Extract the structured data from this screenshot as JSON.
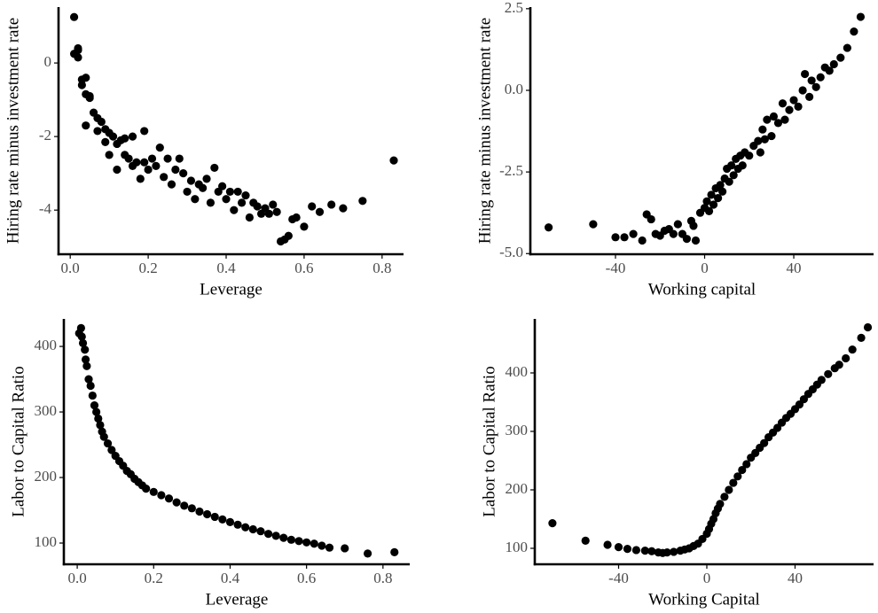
{
  "chart_data": [
    {
      "type": "scatter",
      "xlabel": "Leverage",
      "ylabel": "Hiring rate minus investment rate",
      "color": "#000000",
      "xlim": [
        -0.03,
        0.855
      ],
      "ylim": [
        -5.2,
        1.52
      ],
      "xticks": [
        {
          "value": 0,
          "label": "0.0"
        },
        0.2,
        0.4,
        0.6,
        0.8
      ],
      "yticks": [
        -4,
        -2,
        0
      ],
      "x": [
        0.01,
        0.01,
        0.02,
        0.02,
        0.02,
        0.03,
        0.03,
        0.04,
        0.04,
        0.05,
        0.05,
        0.04,
        0.06,
        0.07,
        0.08,
        0.07,
        0.09,
        0.09,
        0.1,
        0.1,
        0.11,
        0.12,
        0.12,
        0.13,
        0.14,
        0.14,
        0.15,
        0.16,
        0.16,
        0.17,
        0.18,
        0.19,
        0.19,
        0.2,
        0.21,
        0.22,
        0.23,
        0.24,
        0.25,
        0.26,
        0.27,
        0.28,
        0.29,
        0.3,
        0.31,
        0.32,
        0.33,
        0.34,
        0.35,
        0.36,
        0.37,
        0.38,
        0.39,
        0.4,
        0.41,
        0.42,
        0.43,
        0.44,
        0.45,
        0.46,
        0.47,
        0.48,
        0.49,
        0.5,
        0.51,
        0.52,
        0.53,
        0.54,
        0.55,
        0.56,
        0.57,
        0.58,
        0.6,
        0.62,
        0.64,
        0.67,
        0.7,
        0.75,
        0.83
      ],
      "values": [
        1.25,
        0.25,
        0.4,
        0.35,
        0.15,
        -0.45,
        -0.6,
        -0.4,
        -0.85,
        -0.95,
        -0.9,
        -1.7,
        -1.35,
        -1.5,
        -1.6,
        -1.85,
        -1.8,
        -2.15,
        -1.9,
        -2.5,
        -2.0,
        -2.2,
        -2.9,
        -2.1,
        -2.05,
        -2.5,
        -2.6,
        -2.0,
        -2.8,
        -2.7,
        -3.15,
        -2.7,
        -1.85,
        -2.9,
        -2.6,
        -2.8,
        -2.3,
        -3.1,
        -2.6,
        -3.3,
        -2.9,
        -2.6,
        -3.0,
        -3.5,
        -3.2,
        -3.7,
        -3.3,
        -3.4,
        -3.15,
        -3.8,
        -2.85,
        -3.5,
        -3.35,
        -3.7,
        -3.5,
        -4.0,
        -3.5,
        -3.8,
        -3.6,
        -4.2,
        -3.8,
        -3.9,
        -4.1,
        -3.95,
        -4.1,
        -3.85,
        -4.05,
        -4.85,
        -4.8,
        -4.7,
        -4.25,
        -4.2,
        -4.45,
        -3.9,
        -4.05,
        -3.85,
        -3.95,
        -3.75,
        -2.65
      ]
    },
    {
      "type": "scatter",
      "xlabel": "Working capital",
      "ylabel": "Hiring rate minus investment rate",
      "color": "#000000",
      "xlim": [
        -78.2,
        75.8
      ],
      "ylim": [
        -5.02,
        2.55
      ],
      "xticks": [
        -40,
        0,
        40
      ],
      "yticks": [
        {
          "value": -5,
          "label": "-5.0"
        },
        -2.5,
        {
          "value": 0,
          "label": "0.0"
        },
        2.5
      ],
      "x": [
        -70,
        -50,
        -40,
        -36,
        -32,
        -28,
        -26,
        -24,
        -22,
        -20,
        -18,
        -16,
        -14,
        -12,
        -10,
        -8,
        -6,
        -5,
        -4,
        -2,
        0,
        1,
        2,
        3,
        4,
        5,
        6,
        7,
        8,
        9,
        10,
        11,
        12,
        13,
        14,
        15,
        16,
        17,
        18,
        20,
        22,
        24,
        25,
        26,
        27,
        28,
        30,
        31,
        33,
        35,
        36,
        38,
        40,
        42,
        44,
        45,
        47,
        48,
        50,
        52,
        54,
        56,
        58,
        61,
        64,
        67,
        70
      ],
      "values": [
        -4.2,
        -4.1,
        -4.5,
        -4.5,
        -4.4,
        -4.6,
        -3.8,
        -3.95,
        -4.4,
        -4.45,
        -4.3,
        -4.25,
        -4.4,
        -4.1,
        -4.4,
        -4.55,
        -4.0,
        -4.15,
        -4.6,
        -3.75,
        -3.6,
        -3.4,
        -3.7,
        -3.2,
        -3.5,
        -3.0,
        -3.3,
        -2.9,
        -3.1,
        -2.7,
        -2.4,
        -2.8,
        -2.3,
        -2.6,
        -2.1,
        -2.4,
        -2.0,
        -2.3,
        -1.9,
        -2.0,
        -1.7,
        -1.55,
        -1.9,
        -1.2,
        -1.5,
        -0.9,
        -1.4,
        -0.8,
        -1.0,
        -0.4,
        -0.9,
        -0.6,
        -0.3,
        -0.5,
        0.0,
        0.5,
        -0.2,
        0.3,
        0.1,
        0.4,
        0.7,
        0.6,
        0.8,
        1.0,
        1.3,
        1.8,
        2.25
      ]
    },
    {
      "type": "scatter",
      "xlabel": "Leverage",
      "ylabel": "Labor to Capital Ratio",
      "color": "#000000",
      "xlim": [
        -0.035,
        0.87
      ],
      "ylim": [
        67.6,
        442
      ],
      "xticks": [
        {
          "value": 0,
          "label": "0.0"
        },
        0.2,
        0.4,
        0.6,
        0.8
      ],
      "yticks": [
        100,
        200,
        300,
        400
      ],
      "x": [
        0.005,
        0.01,
        0.012,
        0.015,
        0.02,
        0.022,
        0.025,
        0.03,
        0.035,
        0.04,
        0.045,
        0.05,
        0.055,
        0.06,
        0.065,
        0.07,
        0.08,
        0.09,
        0.1,
        0.11,
        0.12,
        0.13,
        0.14,
        0.15,
        0.16,
        0.17,
        0.18,
        0.2,
        0.22,
        0.24,
        0.26,
        0.28,
        0.3,
        0.32,
        0.34,
        0.36,
        0.38,
        0.4,
        0.42,
        0.44,
        0.46,
        0.48,
        0.5,
        0.52,
        0.54,
        0.56,
        0.58,
        0.6,
        0.62,
        0.64,
        0.66,
        0.7,
        0.76,
        0.83
      ],
      "values": [
        420,
        428,
        415,
        405,
        395,
        380,
        370,
        350,
        340,
        325,
        310,
        300,
        290,
        280,
        270,
        262,
        252,
        242,
        233,
        225,
        218,
        210,
        205,
        198,
        193,
        188,
        183,
        178,
        173,
        168,
        162,
        157,
        153,
        148,
        144,
        140,
        136,
        132,
        128,
        124,
        121,
        118,
        114,
        111,
        108,
        105,
        103,
        101,
        99,
        96,
        93,
        92,
        84,
        86
      ]
    },
    {
      "type": "scatter",
      "xlabel": "Working Capital",
      "ylabel": "Labor to Capital Ratio",
      "color": "#000000",
      "xlim": [
        -78,
        75.6
      ],
      "ylim": [
        72.7,
        492.4
      ],
      "xticks": [
        -40,
        0,
        40
      ],
      "yticks": [
        100,
        200,
        300,
        400
      ],
      "x": [
        -70,
        -55,
        -45,
        -40,
        -36,
        -32,
        -28,
        -25,
        -22,
        -20,
        -18,
        -15,
        -12,
        -10,
        -8,
        -6,
        -4,
        -2,
        0,
        1,
        2,
        3,
        4,
        5,
        6,
        8,
        10,
        12,
        14,
        16,
        18,
        20,
        22,
        24,
        26,
        28,
        30,
        32,
        34,
        36,
        38,
        40,
        42,
        44,
        46,
        48,
        50,
        52,
        55,
        58,
        60,
        63,
        66,
        70,
        73
      ],
      "values": [
        143,
        113,
        106,
        102,
        99,
        97,
        96,
        95,
        93,
        92,
        93,
        94,
        96,
        98,
        100,
        104,
        108,
        116,
        125,
        133,
        142,
        150,
        160,
        168,
        176,
        188,
        200,
        212,
        223,
        234,
        244,
        255,
        263,
        272,
        280,
        290,
        298,
        306,
        315,
        323,
        330,
        338,
        346,
        355,
        364,
        372,
        380,
        388,
        398,
        408,
        414,
        425,
        440,
        460,
        478
      ]
    }
  ]
}
